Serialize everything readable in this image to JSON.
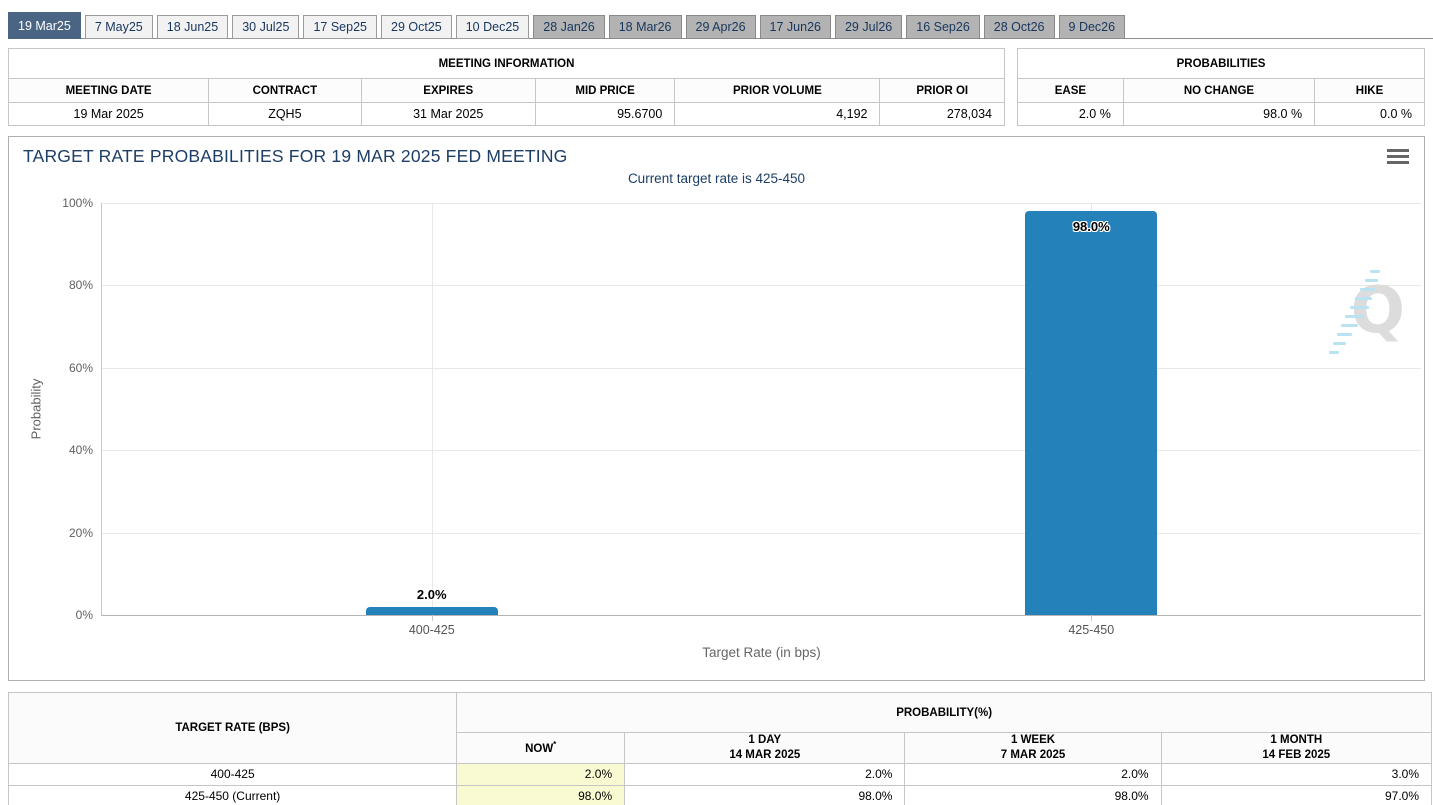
{
  "tabs": {
    "items": [
      {
        "label": "19 Mar25",
        "state": "selected"
      },
      {
        "label": "7 May25",
        "state": "near"
      },
      {
        "label": "18 Jun25",
        "state": "near"
      },
      {
        "label": "30 Jul25",
        "state": "near"
      },
      {
        "label": "17 Sep25",
        "state": "near"
      },
      {
        "label": "29 Oct25",
        "state": "near"
      },
      {
        "label": "10 Dec25",
        "state": "near"
      },
      {
        "label": "28 Jan26",
        "state": "far"
      },
      {
        "label": "18 Mar26",
        "state": "far"
      },
      {
        "label": "29 Apr26",
        "state": "far"
      },
      {
        "label": "17 Jun26",
        "state": "far"
      },
      {
        "label": "29 Jul26",
        "state": "far"
      },
      {
        "label": "16 Sep26",
        "state": "far"
      },
      {
        "label": "28 Oct26",
        "state": "far"
      },
      {
        "label": "9 Dec26",
        "state": "far"
      }
    ]
  },
  "meeting_info": {
    "title": "MEETING INFORMATION",
    "columns": [
      "MEETING DATE",
      "CONTRACT",
      "EXPIRES",
      "MID PRICE",
      "PRIOR VOLUME",
      "PRIOR OI"
    ],
    "values": [
      "19 Mar 2025",
      "ZQH5",
      "31 Mar 2025",
      "95.6700",
      "4,192",
      "278,034"
    ]
  },
  "probabilities_summary": {
    "title": "PROBABILITIES",
    "columns": [
      "EASE",
      "NO CHANGE",
      "HIKE"
    ],
    "values": [
      "2.0 %",
      "98.0 %",
      "0.0 %"
    ]
  },
  "chart_data": {
    "type": "bar",
    "title": "TARGET RATE PROBABILITIES FOR 19 MAR 2025 FED MEETING",
    "subtitle": "Current target rate is 425-450",
    "categories": [
      "400-425",
      "425-450"
    ],
    "values": [
      2.0,
      98.0
    ],
    "value_labels": [
      "2.0%",
      "98.0%"
    ],
    "xlabel": "Target Rate (in bps)",
    "ylabel": "Probability",
    "ylim": [
      0,
      100
    ],
    "ytick_labels": [
      "100%",
      "80%",
      "60%",
      "40%",
      "20%",
      "0%"
    ],
    "grid": true,
    "legend": "none",
    "bar_color": "#2481b9",
    "watermark_letter": "Q"
  },
  "history_table": {
    "col_target": "TARGET RATE (BPS)",
    "col_probability": "PROBABILITY(%)",
    "now_label": "NOW",
    "now_sup": "*",
    "day_label_line1": "1 DAY",
    "day_label_line2": "14 MAR 2025",
    "week_label_line1": "1 WEEK",
    "week_label_line2": "7 MAR 2025",
    "month_label_line1": "1 MONTH",
    "month_label_line2": "14 FEB 2025",
    "rows": [
      {
        "rate": "400-425",
        "now": "2.0%",
        "day": "2.0%",
        "week": "2.0%",
        "month": "3.0%"
      },
      {
        "rate": "425-450 (Current)",
        "now": "98.0%",
        "day": "98.0%",
        "week": "98.0%",
        "month": "97.0%"
      }
    ]
  }
}
